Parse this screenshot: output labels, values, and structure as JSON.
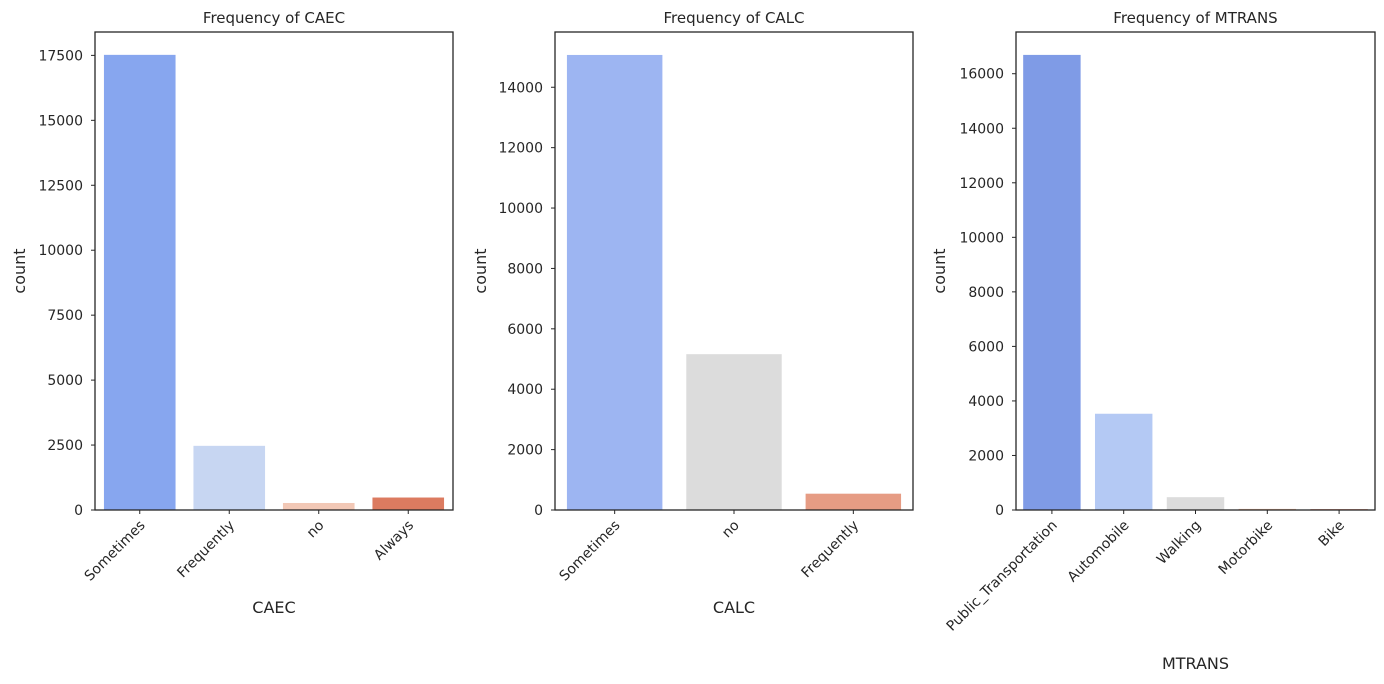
{
  "chart_data": [
    {
      "type": "bar",
      "title": "Frequency of CAEC",
      "xlabel": "CAEC",
      "ylabel": "count",
      "categories": [
        "Sometimes",
        "Frequently",
        "no",
        "Always"
      ],
      "values": [
        17520,
        2470,
        270,
        480
      ],
      "colors": [
        "#87a6ef",
        "#c7d6f2",
        "#f2c8b6",
        "#dc7b60"
      ],
      "yticks": [
        0,
        2500,
        5000,
        7500,
        10000,
        12500,
        15000,
        17500
      ],
      "ylim": [
        0,
        18400
      ],
      "grid": false,
      "tick_rotation": 45
    },
    {
      "type": "bar",
      "title": "Frequency of CALC",
      "xlabel": "CALC",
      "ylabel": "count",
      "categories": [
        "Sometimes",
        "no",
        "Frequently"
      ],
      "values": [
        15070,
        5160,
        540
      ],
      "colors": [
        "#9db5f2",
        "#dcdcdc",
        "#e69c84"
      ],
      "yticks": [
        0,
        2000,
        4000,
        6000,
        8000,
        10000,
        12000,
        14000
      ],
      "ylim": [
        0,
        15830
      ],
      "grid": false,
      "tick_rotation": 45
    },
    {
      "type": "bar",
      "title": "Frequency of MTRANS",
      "xlabel": "MTRANS",
      "ylabel": "count",
      "categories": [
        "Public_Transportation",
        "Automobile",
        "Walking",
        "Motorbike",
        "Bike"
      ],
      "values": [
        16690,
        3530,
        470,
        40,
        30
      ],
      "colors": [
        "#7f9be6",
        "#b4c9f4",
        "#dcdcdc",
        "#f0b9a0",
        "#e27e62"
      ],
      "yticks": [
        0,
        2000,
        4000,
        6000,
        8000,
        10000,
        12000,
        14000,
        16000
      ],
      "ylim": [
        0,
        17530
      ],
      "grid": false,
      "tick_rotation": 45
    }
  ]
}
